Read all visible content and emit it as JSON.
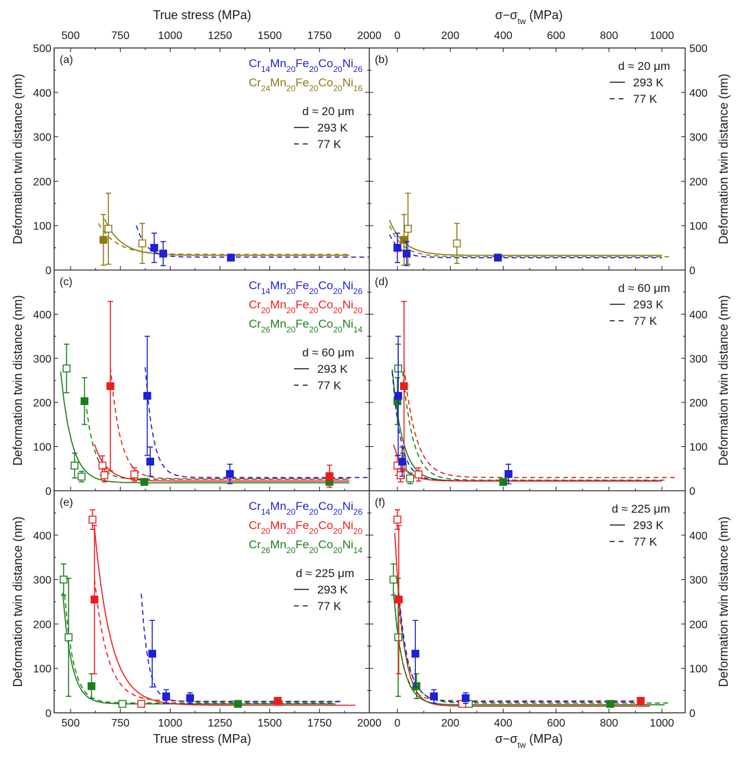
{
  "chart_data": {
    "type": "scatter",
    "title": "",
    "colors": {
      "Cr14Mn20Fe20Co20Ni26": "#1f1fd6",
      "Cr20Mn20Fe20Co20Ni20": "#ee1c1c",
      "Cr24Mn20Fe20Co20Ni16": "#8a7a12",
      "Cr26Mn20Fe20Co20Ni14": "#1a7f1a",
      "axis": "#1a1a1a"
    },
    "axes": {
      "left_x_title": "True stress (MPa)",
      "right_x_title": "σ−σ",
      "right_x_title_sub": "tw",
      "right_x_title_tail": " (MPa)",
      "y_title": "Deformation twin distance (nm)",
      "left_xlim": [
        400,
        2000
      ],
      "right_xlim": [
        -100,
        1100
      ],
      "ylim": [
        0,
        500
      ],
      "left_x_ticks": [
        "500",
        "750",
        "1000",
        "1250",
        "1500",
        "1750",
        "2000"
      ],
      "right_x_ticks": [
        "0",
        "200",
        "400",
        "600",
        "800",
        "1000"
      ],
      "y_ticks_top": [
        "0",
        "100",
        "200",
        "300",
        "400",
        "500"
      ],
      "y_ticks": [
        "0",
        "100",
        "200",
        "300",
        "400"
      ]
    },
    "legend_alloys": {
      "blue": {
        "el": [
          "Cr",
          "Mn",
          "Fe",
          "Co",
          "Ni"
        ],
        "sub": [
          "14",
          "20",
          "20",
          "20",
          "26"
        ]
      },
      "red": {
        "el": [
          "Cr",
          "Mn",
          "Fe",
          "Co",
          "Ni"
        ],
        "sub": [
          "20",
          "20",
          "20",
          "20",
          "20"
        ]
      },
      "olive": {
        "el": [
          "Cr",
          "Mn",
          "Fe",
          "Co",
          "Ni"
        ],
        "sub": [
          "24",
          "20",
          "20",
          "20",
          "16"
        ]
      },
      "green": {
        "el": [
          "Cr",
          "Mn",
          "Fe",
          "Co",
          "Ni"
        ],
        "sub": [
          "26",
          "20",
          "20",
          "20",
          "14"
        ]
      }
    },
    "panels": [
      {
        "id": "a",
        "label": "(a)",
        "axis": "stress",
        "grain_size": "d ≈ 20 μm",
        "legend_293": "293 K",
        "legend_77": "77 K",
        "alloys": [
          "blue",
          "olive"
        ],
        "series": [
          {
            "alloy": "olive",
            "temp": "293 K",
            "filled": false,
            "points": [
              [
                690,
                93,
                80
              ],
              [
                860,
                60,
                45
              ]
            ]
          },
          {
            "alloy": "olive",
            "temp": "77 K",
            "filled": true,
            "points": [
              [
                665,
                68,
                57
              ]
            ]
          },
          {
            "alloy": "blue",
            "temp": "77 K",
            "filled": true,
            "points": [
              [
                920,
                50,
                33
              ],
              [
                965,
                37,
                27
              ],
              [
                1305,
                28,
                5
              ]
            ]
          }
        ],
        "fits": [
          {
            "alloy": "olive",
            "dash": false,
            "x": [
              670,
              1900
            ],
            "y0": 115,
            "yinf": 33,
            "k": 0.012,
            "x0": 670
          },
          {
            "alloy": "olive",
            "dash": true,
            "x": [
              640,
              1900
            ],
            "y0": 105,
            "yinf": 35,
            "k": 0.011,
            "x0": 640
          },
          {
            "alloy": "blue",
            "dash": true,
            "x": [
              830,
              2000
            ],
            "y0": 100,
            "yinf": 29,
            "k": 0.02,
            "x0": 830
          }
        ]
      },
      {
        "id": "b",
        "label": "(b)",
        "axis": "diff",
        "grain_size": "d ≈ 20 μm",
        "legend_293": "293 K",
        "legend_77": "77 K",
        "series": [
          {
            "alloy": "olive",
            "temp": "293 K",
            "filled": false,
            "points": [
              [
                40,
                93,
                80
              ],
              [
                225,
                60,
                45
              ]
            ]
          },
          {
            "alloy": "olive",
            "temp": "77 K",
            "filled": true,
            "points": [
              [
                25,
                68,
                57
              ]
            ]
          },
          {
            "alloy": "blue",
            "temp": "77 K",
            "filled": true,
            "points": [
              [
                0,
                50,
                33
              ],
              [
                35,
                37,
                27
              ],
              [
                380,
                28,
                5
              ]
            ]
          }
        ],
        "fits": [
          {
            "alloy": "olive",
            "dash": false,
            "x": [
              -30,
              1000
            ],
            "y0": 112,
            "yinf": 33,
            "k": 0.018,
            "x0": -30
          },
          {
            "alloy": "olive",
            "dash": true,
            "x": [
              -30,
              1030
            ],
            "y0": 100,
            "yinf": 30,
            "k": 0.02,
            "x0": -30
          },
          {
            "alloy": "blue",
            "dash": true,
            "x": [
              -30,
              1000
            ],
            "y0": 80,
            "yinf": 28,
            "k": 0.025,
            "x0": -30
          }
        ]
      },
      {
        "id": "c",
        "label": "(c)",
        "axis": "stress",
        "grain_size": "d ≈ 60 μm",
        "legend_293": "293 K",
        "legend_77": "77 K",
        "alloys": [
          "blue",
          "red",
          "green"
        ],
        "series": [
          {
            "alloy": "green",
            "temp": "293 K",
            "filled": false,
            "points": [
              [
                480,
                277,
                55
              ],
              [
                520,
                57,
                28
              ],
              [
                555,
                32,
                12
              ]
            ]
          },
          {
            "alloy": "green",
            "temp": "77 K",
            "filled": true,
            "points": [
              [
                570,
                203,
                53
              ],
              [
                870,
                20,
                3
              ]
            ]
          },
          {
            "alloy": "green",
            "temp": "77 K",
            "filled": true,
            "points": [
              [
                1800,
                20,
                3
              ]
            ]
          },
          {
            "alloy": "red",
            "temp": "293 K",
            "filled": false,
            "points": [
              [
                660,
                57,
                22
              ],
              [
                670,
                35,
                15
              ],
              [
                820,
                37,
                15
              ]
            ]
          },
          {
            "alloy": "red",
            "temp": "77 K",
            "filled": true,
            "points": [
              [
                700,
                237,
                192
              ],
              [
                1800,
                33,
                25
              ]
            ]
          },
          {
            "alloy": "blue",
            "temp": "77 K",
            "filled": true,
            "points": [
              [
                885,
                215,
                135
              ],
              [
                900,
                66,
                33
              ],
              [
                1300,
                38,
                22
              ]
            ]
          }
        ],
        "fits": [
          {
            "alloy": "green",
            "dash": false,
            "x": [
              450,
              1900
            ],
            "y0": 270,
            "yinf": 18,
            "k": 0.018,
            "x0": 450
          },
          {
            "alloy": "green",
            "dash": true,
            "x": [
              580,
              1900
            ],
            "y0": 185,
            "yinf": 26,
            "k": 0.022,
            "x0": 580
          },
          {
            "alloy": "red",
            "dash": false,
            "x": [
              620,
              1900
            ],
            "y0": 105,
            "yinf": 22,
            "k": 0.016,
            "x0": 620
          },
          {
            "alloy": "red",
            "dash": true,
            "x": [
              700,
              1900
            ],
            "y0": 280,
            "yinf": 27,
            "k": 0.02,
            "x0": 700
          },
          {
            "alloy": "blue",
            "dash": true,
            "x": [
              875,
              2000
            ],
            "y0": 280,
            "yinf": 30,
            "k": 0.025,
            "x0": 875
          }
        ]
      },
      {
        "id": "d",
        "label": "(d)",
        "axis": "diff",
        "grain_size": "d ≈ 60 μm",
        "legend_293": "293 K",
        "legend_77": "77 K",
        "series": [
          {
            "alloy": "green",
            "temp": "293 K",
            "filled": false,
            "points": [
              [
                3,
                277,
                55
              ],
              [
                20,
                57,
                28
              ],
              [
                48,
                28,
                12
              ]
            ]
          },
          {
            "alloy": "green",
            "temp": "77 K",
            "filled": true,
            "points": [
              [
                0,
                203,
                53
              ],
              [
                400,
                20,
                3
              ]
            ]
          },
          {
            "alloy": "red",
            "temp": "293 K",
            "filled": false,
            "points": [
              [
                0,
                57,
                22
              ],
              [
                12,
                35,
                15
              ],
              [
                80,
                37,
                15
              ]
            ]
          },
          {
            "alloy": "red",
            "temp": "77 K",
            "filled": true,
            "points": [
              [
                25,
                237,
                192
              ]
            ]
          },
          {
            "alloy": "blue",
            "temp": "77 K",
            "filled": true,
            "points": [
              [
                3,
                215,
                135
              ],
              [
                18,
                66,
                33
              ],
              [
                420,
                38,
                22
              ]
            ]
          }
        ],
        "fits": [
          {
            "alloy": "green",
            "dash": false,
            "x": [
              -20,
              990
            ],
            "y0": 275,
            "yinf": 22,
            "k": 0.025,
            "x0": -20
          },
          {
            "alloy": "blue",
            "dash": true,
            "x": [
              -20,
              1000
            ],
            "y0": 270,
            "yinf": 23,
            "k": 0.03,
            "x0": -20
          },
          {
            "alloy": "green",
            "dash": true,
            "x": [
              20,
              1020
            ],
            "y0": 270,
            "yinf": 24,
            "k": 0.025,
            "x0": 20
          },
          {
            "alloy": "red",
            "dash": false,
            "x": [
              -15,
              1000
            ],
            "y0": 105,
            "yinf": 22,
            "k": 0.025,
            "x0": -15
          },
          {
            "alloy": "red",
            "dash": true,
            "x": [
              25,
              1060
            ],
            "y0": 280,
            "yinf": 30,
            "k": 0.022,
            "x0": 25
          }
        ]
      },
      {
        "id": "e",
        "label": "(e)",
        "axis": "stress",
        "grain_size": "d ≈ 225 μm",
        "legend_293": "293 K",
        "legend_77": "77 K",
        "alloys": [
          "blue",
          "red",
          "green"
        ],
        "series": [
          {
            "alloy": "green",
            "temp": "293 K",
            "filled": false,
            "points": [
              [
                465,
                300,
                35
              ],
              [
                490,
                170,
                133
              ],
              [
                760,
                20,
                3
              ]
            ]
          },
          {
            "alloy": "green",
            "temp": "77 K",
            "filled": true,
            "points": [
              [
                605,
                60,
                28
              ],
              [
                1340,
                20,
                3
              ]
            ]
          },
          {
            "alloy": "red",
            "temp": "293 K",
            "filled": false,
            "points": [
              [
                610,
                435,
                22
              ],
              [
                855,
                20,
                3
              ]
            ]
          },
          {
            "alloy": "red",
            "temp": "77 K",
            "filled": true,
            "points": [
              [
                620,
                255,
                167
              ],
              [
                1540,
                27,
                5
              ]
            ]
          },
          {
            "alloy": "blue",
            "temp": "77 K",
            "filled": true,
            "points": [
              [
                910,
                133,
                75
              ],
              [
                980,
                37,
                15
              ],
              [
                1100,
                33,
                12
              ]
            ]
          }
        ],
        "fits": [
          {
            "alloy": "green",
            "dash": false,
            "x": [
              460,
              1830
            ],
            "y0": 270,
            "yinf": 20,
            "k": 0.022,
            "x0": 460
          },
          {
            "alloy": "green",
            "dash": true,
            "x": [
              470,
              1830
            ],
            "y0": 265,
            "yinf": 22,
            "k": 0.022,
            "x0": 470
          },
          {
            "alloy": "red",
            "dash": false,
            "x": [
              620,
              1930
            ],
            "y0": 415,
            "yinf": 17,
            "k": 0.012,
            "x0": 620
          },
          {
            "alloy": "red",
            "dash": true,
            "x": [
              620,
              1860
            ],
            "y0": 300,
            "yinf": 26,
            "k": 0.015,
            "x0": 620
          },
          {
            "alloy": "blue",
            "dash": true,
            "x": [
              855,
              1860
            ],
            "y0": 268,
            "yinf": 25,
            "k": 0.028,
            "x0": 855
          }
        ]
      },
      {
        "id": "f",
        "label": "(f)",
        "axis": "diff",
        "grain_size": "d ≈ 225 μm",
        "legend_293": "293 K",
        "legend_77": "77 K",
        "series": [
          {
            "alloy": "green",
            "temp": "293 K",
            "filled": false,
            "points": [
              [
                -15,
                300,
                35
              ],
              [
                3,
                170,
                133
              ],
              [
                270,
                20,
                3
              ]
            ]
          },
          {
            "alloy": "green",
            "temp": "77 K",
            "filled": true,
            "points": [
              [
                72,
                60,
                28
              ],
              [
                805,
                20,
                3
              ]
            ]
          },
          {
            "alloy": "red",
            "temp": "293 K",
            "filled": false,
            "points": [
              [
                0,
                435,
                22
              ],
              [
                245,
                20,
                3
              ]
            ]
          },
          {
            "alloy": "red",
            "temp": "77 K",
            "filled": true,
            "points": [
              [
                5,
                255,
                167
              ],
              [
                920,
                27,
                5
              ]
            ]
          },
          {
            "alloy": "blue",
            "temp": "77 K",
            "filled": true,
            "points": [
              [
                68,
                133,
                75
              ],
              [
                138,
                37,
                15
              ],
              [
                258,
                33,
                12
              ]
            ]
          }
        ],
        "fits": [
          {
            "alloy": "red",
            "dash": false,
            "x": [
              -10,
              955
            ],
            "y0": 405,
            "yinf": 15,
            "k": 0.03,
            "x0": -10
          },
          {
            "alloy": "red",
            "dash": true,
            "x": [
              -15,
              930
            ],
            "y0": 275,
            "yinf": 27,
            "k": 0.03,
            "x0": -15
          },
          {
            "alloy": "green",
            "dash": false,
            "x": [
              -15,
              1010
            ],
            "y0": 270,
            "yinf": 18,
            "k": 0.028,
            "x0": -15
          },
          {
            "alloy": "green",
            "dash": true,
            "x": [
              0,
              1030
            ],
            "y0": 265,
            "yinf": 22,
            "k": 0.025,
            "x0": 0
          },
          {
            "alloy": "blue",
            "dash": true,
            "x": [
              5,
              930
            ],
            "y0": 270,
            "yinf": 25,
            "k": 0.028,
            "x0": 5
          }
        ]
      }
    ]
  }
}
